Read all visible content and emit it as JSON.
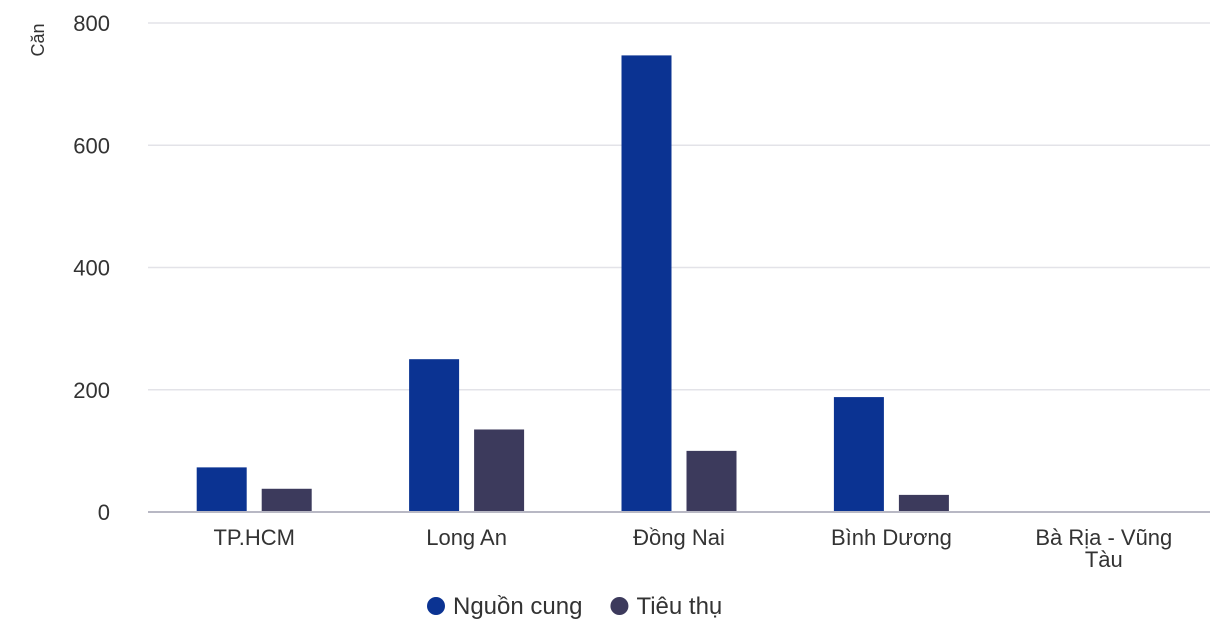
{
  "chart_data": {
    "type": "bar",
    "title": "",
    "xlabel": "",
    "ylabel": "Căn",
    "categories": [
      "TP.HCM",
      "Long An",
      "Đồng Nai",
      "Bình Dương",
      "Bà Rịa - Vũng Tàu"
    ],
    "category_lines": [
      [
        "TP.HCM"
      ],
      [
        "Long An"
      ],
      [
        "Đồng Nai"
      ],
      [
        "Bình Dương"
      ],
      [
        "Bà Rịa - Vũng",
        "Tàu"
      ]
    ],
    "series": [
      {
        "name": "Nguồn cung",
        "color": "#0b3392",
        "values": [
          73,
          250,
          747,
          188,
          0
        ]
      },
      {
        "name": "Tiêu thụ",
        "color": "#3c3a5c",
        "values": [
          38,
          135,
          100,
          28,
          0
        ]
      }
    ],
    "ylim": [
      0,
      800
    ],
    "yticks": [
      0,
      200,
      400,
      600,
      800
    ],
    "grid": true,
    "legend_position": "bottom-center"
  }
}
